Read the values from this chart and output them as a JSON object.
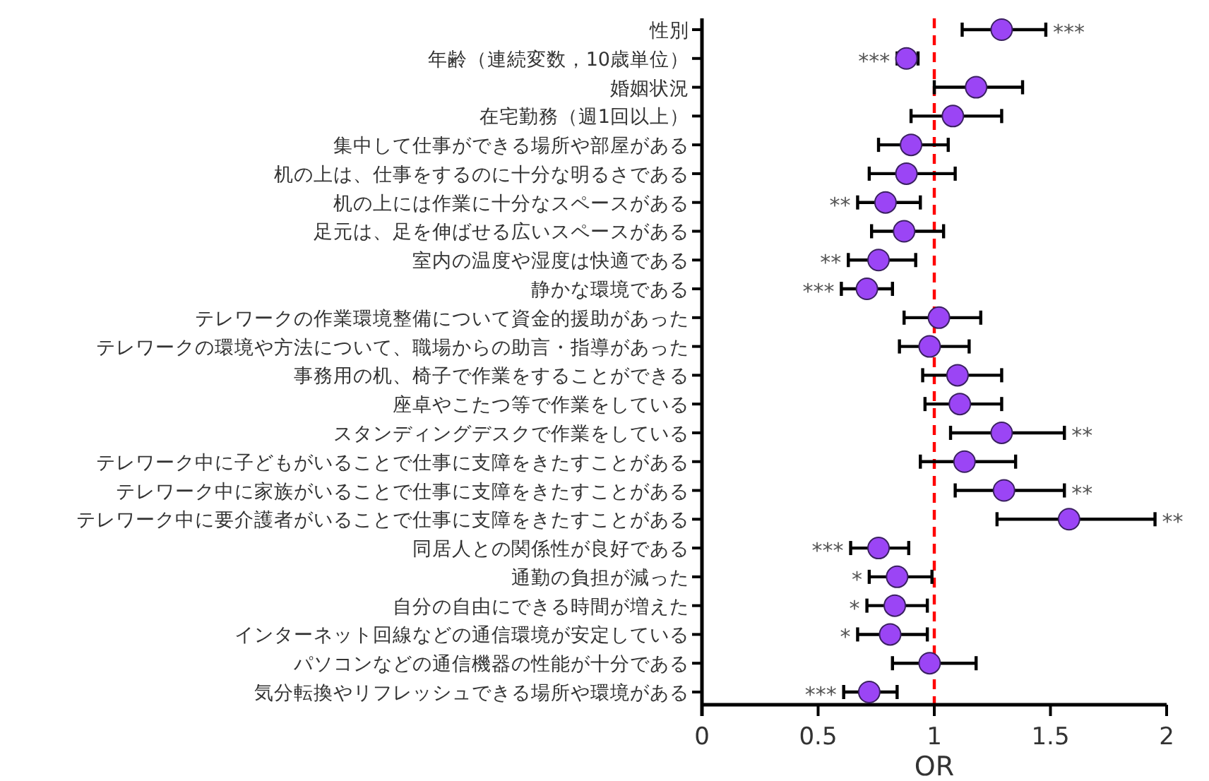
{
  "chart_data": {
    "type": "scatter",
    "orientation": "horizontal",
    "xlabel": "OR",
    "marker": "circle",
    "color": "#9b45f5",
    "grid": false,
    "categories": [
      "性別",
      "年齢（連続変数，10歳単位）",
      "婚姻状況",
      "在宅勤務（週1回以上）",
      "集中して仕事ができる場所や部屋がある",
      "机の上は、仕事をするのに十分な明るさである",
      "机の上には作業に十分なスペースがある",
      "足元は、足を伸ばせる広いスペースがある",
      "室内の温度や湿度は快適である",
      "静かな環境である",
      "テレワークの作業環境整備について資金的援助があった",
      "テレワークの環境や方法について、職場からの助言・指導があった",
      "事務用の机、椅子で作業をすることができる",
      "座卓やこたつ等で作業をしている",
      "スタンディングデスクで作業をしている",
      "テレワーク中に子どもがいることで仕事に支障をきたすことがある",
      "テレワーク中に家族がいることで仕事に支障をきたすことがある",
      "テレワーク中に要介護者がいることで仕事に支障をきたすことがある",
      "同居人との関係性が良好である",
      "通勤の負担が減った",
      "自分の自由にできる時間が増えた",
      "インターネット回線などの通信環境が安定している",
      "パソコンなどの通信機器の性能が十分である",
      "気分転換やリフレッシュできる場所や環境がある"
    ],
    "values": [
      1.29,
      0.88,
      1.18,
      1.08,
      0.9,
      0.88,
      0.79,
      0.87,
      0.76,
      0.71,
      1.02,
      0.98,
      1.1,
      1.11,
      1.29,
      1.13,
      1.3,
      1.58,
      0.76,
      0.84,
      0.83,
      0.81,
      0.98,
      0.72
    ],
    "errors": [
      [
        1.12,
        1.48
      ],
      [
        0.84,
        0.93
      ],
      [
        1.0,
        1.38
      ],
      [
        0.9,
        1.29
      ],
      [
        0.76,
        1.06
      ],
      [
        0.72,
        1.09
      ],
      [
        0.67,
        0.94
      ],
      [
        0.73,
        1.04
      ],
      [
        0.63,
        0.92
      ],
      [
        0.6,
        0.82
      ],
      [
        0.87,
        1.2
      ],
      [
        0.85,
        1.15
      ],
      [
        0.95,
        1.29
      ],
      [
        0.96,
        1.29
      ],
      [
        1.07,
        1.56
      ],
      [
        0.94,
        1.35
      ],
      [
        1.09,
        1.56
      ],
      [
        1.27,
        1.95
      ],
      [
        0.64,
        0.89
      ],
      [
        0.72,
        0.99
      ],
      [
        0.71,
        0.97
      ],
      [
        0.67,
        0.97
      ],
      [
        0.82,
        1.18
      ],
      [
        0.61,
        0.84
      ]
    ],
    "xlim": [
      0,
      2
    ],
    "xticks": [
      0,
      0.5,
      1,
      1.5,
      2
    ],
    "ref_lines": [
      {
        "axis": "x",
        "value": 1,
        "color": "#ff0000",
        "line_style": "dashed"
      }
    ],
    "annotations": [
      {
        "text": "***",
        "x": 1.48,
        "y": "性別"
      },
      {
        "text": "***",
        "x": 0.84,
        "y": "年齢（連続変数，10歳単位）"
      },
      {
        "text": "**",
        "x": 0.67,
        "y": "机の上には作業に十分なスペースがある"
      },
      {
        "text": "**",
        "x": 0.63,
        "y": "室内の温度や湿度は快適である"
      },
      {
        "text": "***",
        "x": 0.6,
        "y": "静かな環境である"
      },
      {
        "text": "**",
        "x": 1.56,
        "y": "スタンディングデスクで作業をしている"
      },
      {
        "text": "**",
        "x": 1.56,
        "y": "テレワーク中に家族がいることで仕事に支障をきたすことがある"
      },
      {
        "text": "**",
        "x": 1.95,
        "y": "テレワーク中に要介護者がいることで仕事に支障をきたすことがある"
      },
      {
        "text": "***",
        "x": 0.64,
        "y": "同居人との関係性が良好である"
      },
      {
        "text": "*",
        "x": 0.72,
        "y": "通勤の負担が減った"
      },
      {
        "text": "*",
        "x": 0.71,
        "y": "自分の自由にできる時間が増えた"
      },
      {
        "text": "*",
        "x": 0.67,
        "y": "インターネット回線などの通信環境が安定している"
      },
      {
        "text": "***",
        "x": 0.61,
        "y": "気分転換やリフレッシュできる場所や環境がある"
      }
    ]
  }
}
